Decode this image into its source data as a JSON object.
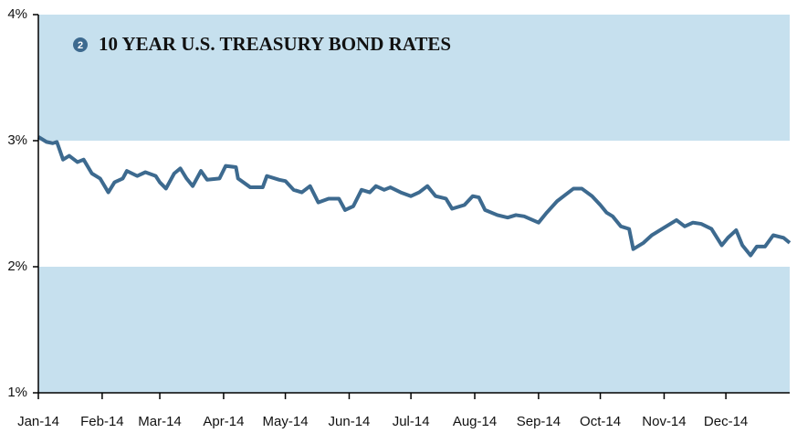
{
  "chart_data": {
    "type": "line",
    "title_marker": "2",
    "title": "10 YEAR U.S. TREASURY BOND RATES",
    "x": [
      0,
      4,
      7,
      9,
      12,
      15,
      19,
      22,
      26,
      30,
      34,
      37,
      41,
      43,
      48,
      52,
      57,
      59,
      62,
      66,
      69,
      72,
      75,
      79,
      82,
      88,
      91,
      96,
      97,
      103,
      109,
      111,
      117,
      120,
      124,
      128,
      132,
      136,
      141,
      146,
      149,
      153,
      157,
      161,
      164,
      168,
      171,
      176,
      181,
      185,
      189,
      193,
      198,
      201,
      207,
      211,
      214,
      217,
      223,
      228,
      232,
      236,
      243,
      247,
      252,
      256,
      260,
      264,
      269,
      273,
      276,
      279,
      283,
      287,
      289,
      294,
      298,
      303,
      307,
      310,
      314,
      318,
      322,
      327,
      332,
      335,
      339,
      342,
      346,
      349,
      353,
      357,
      362,
      365
    ],
    "series": [
      {
        "name": "10 Year U.S. Treasury",
        "color": "#3d6a8f",
        "values": [
          3.03,
          2.99,
          2.98,
          2.99,
          2.85,
          2.88,
          2.83,
          2.85,
          2.74,
          2.7,
          2.59,
          2.67,
          2.7,
          2.76,
          2.72,
          2.75,
          2.72,
          2.67,
          2.62,
          2.74,
          2.78,
          2.7,
          2.64,
          2.76,
          2.69,
          2.7,
          2.8,
          2.79,
          2.7,
          2.63,
          2.63,
          2.72,
          2.69,
          2.68,
          2.61,
          2.59,
          2.64,
          2.51,
          2.54,
          2.54,
          2.45,
          2.48,
          2.61,
          2.59,
          2.64,
          2.61,
          2.63,
          2.59,
          2.56,
          2.59,
          2.64,
          2.56,
          2.54,
          2.46,
          2.49,
          2.56,
          2.55,
          2.45,
          2.41,
          2.39,
          2.41,
          2.4,
          2.35,
          2.43,
          2.52,
          2.57,
          2.62,
          2.62,
          2.56,
          2.49,
          2.43,
          2.4,
          2.32,
          2.3,
          2.14,
          2.19,
          2.25,
          2.3,
          2.34,
          2.37,
          2.32,
          2.35,
          2.34,
          2.3,
          2.17,
          2.23,
          2.29,
          2.17,
          2.09,
          2.16,
          2.16,
          2.25,
          2.23,
          2.19
        ]
      }
    ],
    "xlim": [
      0,
      365
    ],
    "xticks": [
      {
        "value": 0,
        "label": "Jan-14"
      },
      {
        "value": 31,
        "label": "Feb-14"
      },
      {
        "value": 59,
        "label": "Mar-14"
      },
      {
        "value": 90,
        "label": "Apr-14"
      },
      {
        "value": 120,
        "label": "May-14"
      },
      {
        "value": 151,
        "label": "Jun-14"
      },
      {
        "value": 181,
        "label": "Jul-14"
      },
      {
        "value": 212,
        "label": "Aug-14"
      },
      {
        "value": 243,
        "label": "Sep-14"
      },
      {
        "value": 273,
        "label": "Oct-14"
      },
      {
        "value": 304,
        "label": "Nov-14"
      },
      {
        "value": 334,
        "label": "Dec-14"
      }
    ],
    "ylim": [
      1,
      4
    ],
    "yticks": [
      {
        "value": 1,
        "label": "1%"
      },
      {
        "value": 2,
        "label": "2%"
      },
      {
        "value": 3,
        "label": "3%"
      },
      {
        "value": 4,
        "label": "4%"
      }
    ],
    "band_color": "#c6e0ee"
  }
}
